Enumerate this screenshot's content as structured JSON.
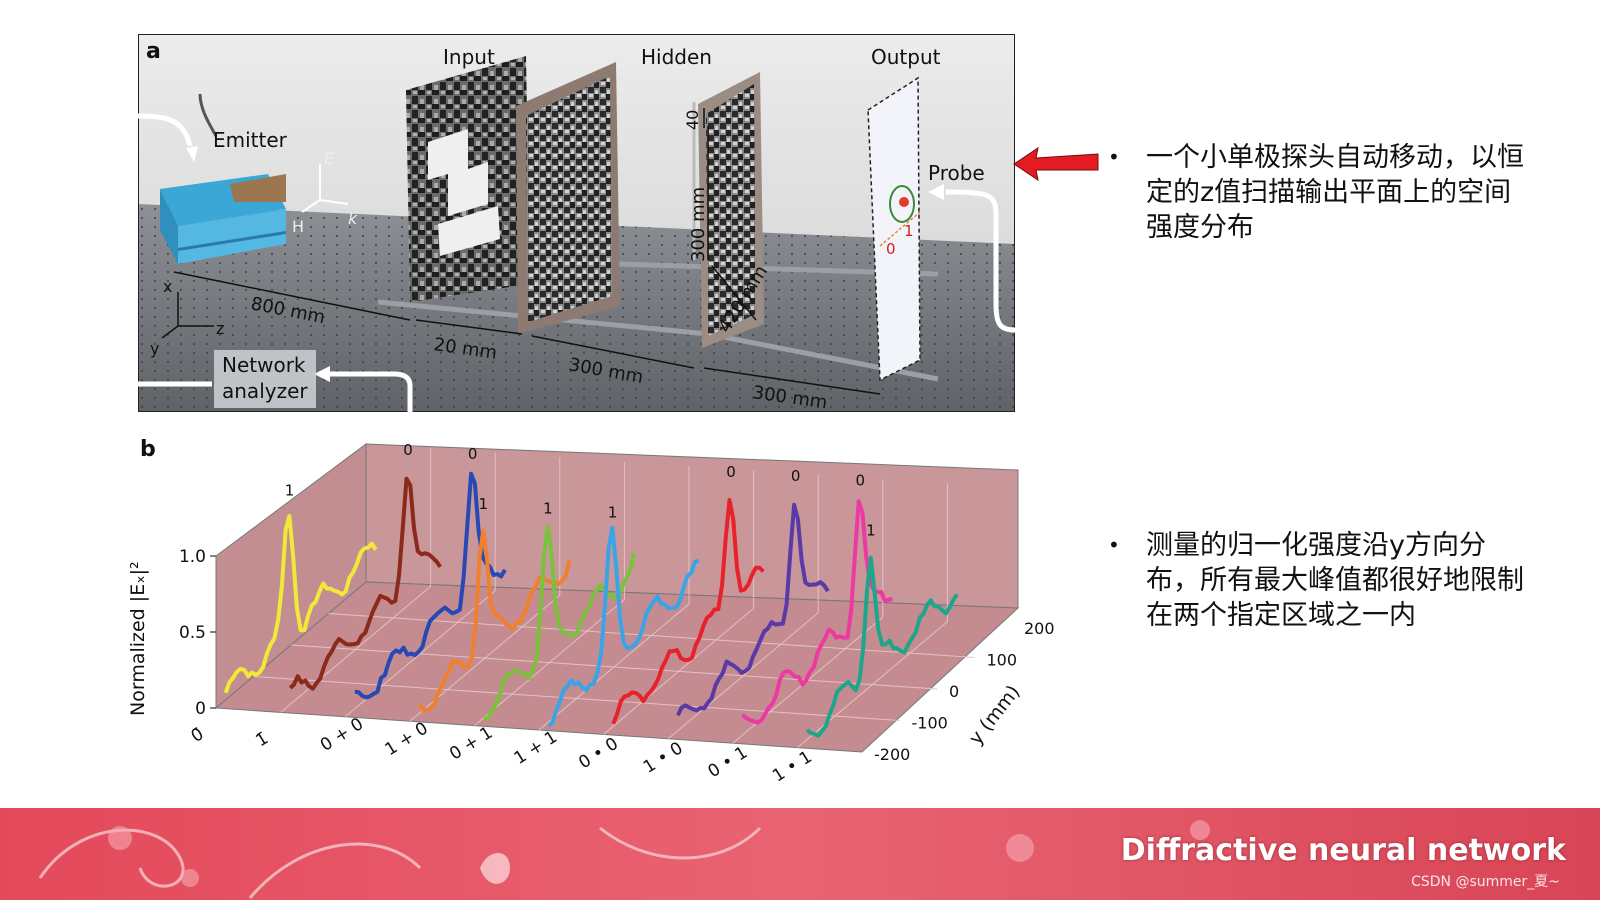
{
  "panel_a": {
    "letter": "a",
    "labels": {
      "input": "Input",
      "hidden": "Hidden",
      "output": "Output",
      "emitter": "Emitter",
      "probe": "Probe",
      "network_analyzer_line1": "Network",
      "network_analyzer_line2": "analyzer",
      "dim_800": "800 mm",
      "dim_20": "20 mm",
      "dim_300a": "300 mm",
      "dim_300b": "300 mm",
      "dim_300_vert": "300 mm",
      "dim_420": "420 mm",
      "dim_40": "40",
      "axis_x": "x",
      "axis_y": "y",
      "axis_z": "z",
      "field_E": "E",
      "field_H": "H",
      "field_k": "k",
      "probe_0": "0",
      "probe_1": "1"
    }
  },
  "panel_b": {
    "letter": "b",
    "ylabel": "Normalized |Eₓ|²",
    "yticks": [
      "0",
      "0.5",
      "1.0"
    ],
    "ydepth_label": "y (mm)",
    "ydepth_ticks": [
      "200",
      "100",
      "0",
      "-100",
      "-200"
    ],
    "chart_data": {
      "type": "line",
      "y_axis": "Normalized |Ex|^2",
      "ylim": [
        0,
        1.0
      ],
      "depth_axis": "y (mm)",
      "depth_range": [
        -200,
        200
      ],
      "series": [
        {
          "label": "0̄",
          "peak": "1",
          "color": "#f2e83a"
        },
        {
          "label": "1̄",
          "peak": "0",
          "color": "#8b2a1a"
        },
        {
          "label": "0 + 0",
          "peak": "0",
          "color": "#2848b4"
        },
        {
          "label": "1 + 0",
          "peak": "1",
          "color": "#f08030"
        },
        {
          "label": "0 + 1",
          "peak": "1",
          "color": "#7ac23c"
        },
        {
          "label": "1 + 1",
          "peak": "1",
          "color": "#3aa4e6"
        },
        {
          "label": "0 • 0",
          "peak": "0",
          "color": "#e8222a"
        },
        {
          "label": "1 • 0",
          "peak": "0",
          "color": "#5a3aa6"
        },
        {
          "label": "0 • 1",
          "peak": "0",
          "color": "#ec3aa2"
        },
        {
          "label": "1 • 1",
          "peak": "1",
          "color": "#1ea68a"
        }
      ]
    }
  },
  "bullets": [
    "一个小单极探头自动移动，以恒定的z值扫描输出平面上的空间强度分布",
    "测量的归一化强度沿y方向分布，所有最大峰值都很好地限制在两个指定区域之一内"
  ],
  "footer": {
    "title": "Diffractive neural network",
    "watermark": "CSDN @summer_夏~"
  },
  "colors": {
    "banner": "#e0505e",
    "chart_wall": "#c9969a",
    "arrow": "#e31b23"
  }
}
